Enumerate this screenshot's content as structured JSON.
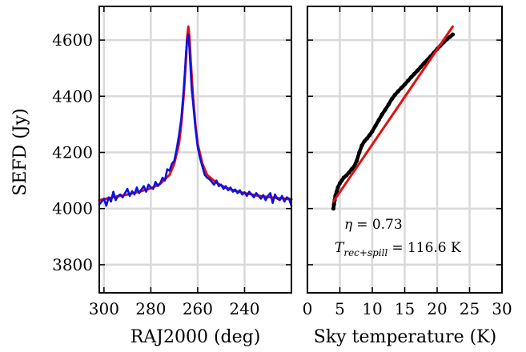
{
  "chart_data": [
    {
      "type": "line",
      "xlabel": "RAJ2000 (deg)",
      "ylabel": "SEFD (Jy)",
      "xlim": [
        302,
        220
      ],
      "ylim": [
        3700,
        4720
      ],
      "xticks": [
        300,
        280,
        260,
        240
      ],
      "yticks": [
        3800,
        4000,
        4200,
        4400,
        4600
      ],
      "grid": true,
      "colors": {
        "data": "#1010e0",
        "fit": "#e01010"
      },
      "series": [
        {
          "color": "#e01010",
          "x": [
            302,
            295,
            290,
            285,
            280,
            276,
            272,
            270,
            268,
            267,
            266,
            265,
            264.5,
            264,
            263.5,
            263,
            262,
            261,
            260,
            258,
            256,
            252,
            248,
            244,
            240,
            235,
            230,
            225,
            220
          ],
          "values": [
            4030,
            4042,
            4050,
            4060,
            4072,
            4088,
            4120,
            4160,
            4230,
            4300,
            4400,
            4530,
            4610,
            4648,
            4610,
            4530,
            4400,
            4300,
            4230,
            4160,
            4120,
            4092,
            4074,
            4063,
            4055,
            4047,
            4041,
            4037,
            4033
          ]
        },
        {
          "color": "#1010e0",
          "x": [
            302,
            300,
            299,
            298,
            297,
            296,
            295,
            294,
            293,
            292,
            291,
            290,
            289,
            288,
            287,
            286,
            285,
            284,
            283,
            282,
            281,
            280,
            279,
            278,
            277,
            276,
            275,
            274,
            273,
            272,
            271,
            270,
            269,
            268,
            267,
            266,
            265.5,
            265,
            264.5,
            264,
            263.5,
            263,
            262.5,
            262,
            261,
            260,
            259,
            258,
            257,
            256,
            255,
            254,
            253,
            252,
            251,
            250,
            249,
            248,
            247,
            246,
            245,
            244,
            243,
            242,
            241,
            240,
            239,
            238,
            237,
            236,
            235,
            234,
            233,
            232,
            231,
            230,
            229,
            228,
            227,
            226,
            225,
            224,
            223,
            222,
            221,
            220
          ],
          "values": [
            4015,
            4035,
            4010,
            4040,
            4025,
            4060,
            4030,
            4045,
            4050,
            4040,
            4055,
            4070,
            4045,
            4062,
            4050,
            4075,
            4055,
            4068,
            4080,
            4060,
            4085,
            4075,
            4070,
            4095,
            4080,
            4090,
            4110,
            4100,
            4140,
            4135,
            4160,
            4170,
            4210,
            4260,
            4320,
            4420,
            4480,
            4550,
            4600,
            4620,
            4570,
            4490,
            4420,
            4380,
            4290,
            4220,
            4180,
            4150,
            4120,
            4110,
            4105,
            4095,
            4085,
            4100,
            4080,
            4085,
            4070,
            4080,
            4065,
            4075,
            4060,
            4068,
            4055,
            4065,
            4050,
            4058,
            4045,
            4060,
            4050,
            4040,
            4055,
            4045,
            4035,
            4048,
            4030,
            4045,
            4055,
            4020,
            4050,
            4035,
            4030,
            4045,
            4025,
            4040,
            4035,
            4010
          ]
        }
      ]
    },
    {
      "type": "scatter",
      "xlabel": "Sky temperature (K)",
      "ylabel": "",
      "xlim": [
        0,
        30
      ],
      "ylim": [
        3700,
        4720
      ],
      "xticks": [
        0,
        5,
        10,
        15,
        20,
        25,
        30
      ],
      "yticks": [
        3800,
        4000,
        4200,
        4400,
        4600
      ],
      "grid": true,
      "colors": {
        "data": "#000000",
        "fit": "#e01010"
      },
      "series": [
        {
          "color": "#000000",
          "x": [
            4.0,
            4.1,
            4.2,
            4.3,
            4.5,
            4.7,
            5.0,
            5.3,
            5.6,
            6.0,
            6.4,
            6.8,
            7.2,
            7.6,
            8.0,
            8.4,
            8.8,
            9.2,
            9.6,
            10.0,
            10.5,
            11.0,
            11.5,
            12.0,
            12.5,
            13.0,
            13.5,
            14.0,
            14.5,
            15.0,
            15.5,
            16.0,
            16.5,
            17.0,
            17.5,
            18.0,
            18.5,
            19.0,
            19.5,
            20.0,
            20.5,
            21.0,
            21.5,
            22.0,
            22.4
          ],
          "values": [
            4000,
            4015,
            4030,
            4045,
            4060,
            4075,
            4090,
            4100,
            4110,
            4118,
            4128,
            4140,
            4150,
            4170,
            4200,
            4225,
            4240,
            4250,
            4262,
            4275,
            4295,
            4315,
            4335,
            4352,
            4370,
            4390,
            4405,
            4418,
            4430,
            4442,
            4455,
            4468,
            4480,
            4492,
            4505,
            4518,
            4530,
            4542,
            4555,
            4568,
            4580,
            4592,
            4603,
            4612,
            4620
          ]
        },
        {
          "color": "#e01010",
          "x": [
            4.0,
            22.4
          ],
          "values": [
            4025,
            4648
          ]
        }
      ]
    }
  ],
  "annotation": {
    "eta_symbol": "η",
    "eta_value": "= 0.73",
    "t_symbol": "T",
    "t_subscript": "rec+spill",
    "t_value": "= 116.6 K"
  }
}
